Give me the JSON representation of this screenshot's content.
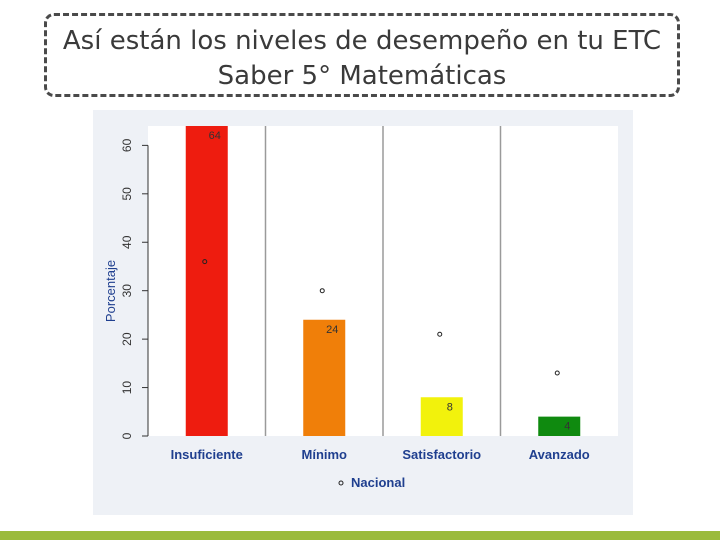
{
  "slide": {
    "title_line1": "Así están los niveles de desempeño en tu ETC",
    "title_line2": "Saber 5° Matemáticas"
  },
  "colors": {
    "panel_bg": "#eef1f6",
    "bottom_bar": "#9bbb3b"
  },
  "chart_data": {
    "type": "bar",
    "categories": [
      "Insuficiente",
      "Mínimo",
      "Satisfactorio",
      "Avanzado"
    ],
    "values": [
      64,
      24,
      8,
      4
    ],
    "bar_labels": [
      "64",
      "24",
      "8",
      "4"
    ],
    "bar_colors": [
      "#ee1c0f",
      "#f07f09",
      "#f2f20c",
      "#0f8a0f"
    ],
    "national": [
      36,
      30,
      21,
      13
    ],
    "national_label": "Nacional",
    "ylabel": "Porcentaje",
    "yticks": [
      0,
      10,
      20,
      30,
      40,
      50,
      60
    ],
    "ylim": [
      0,
      64
    ],
    "grid": "vertical separators between categories",
    "legend_position": "bottom-center"
  }
}
